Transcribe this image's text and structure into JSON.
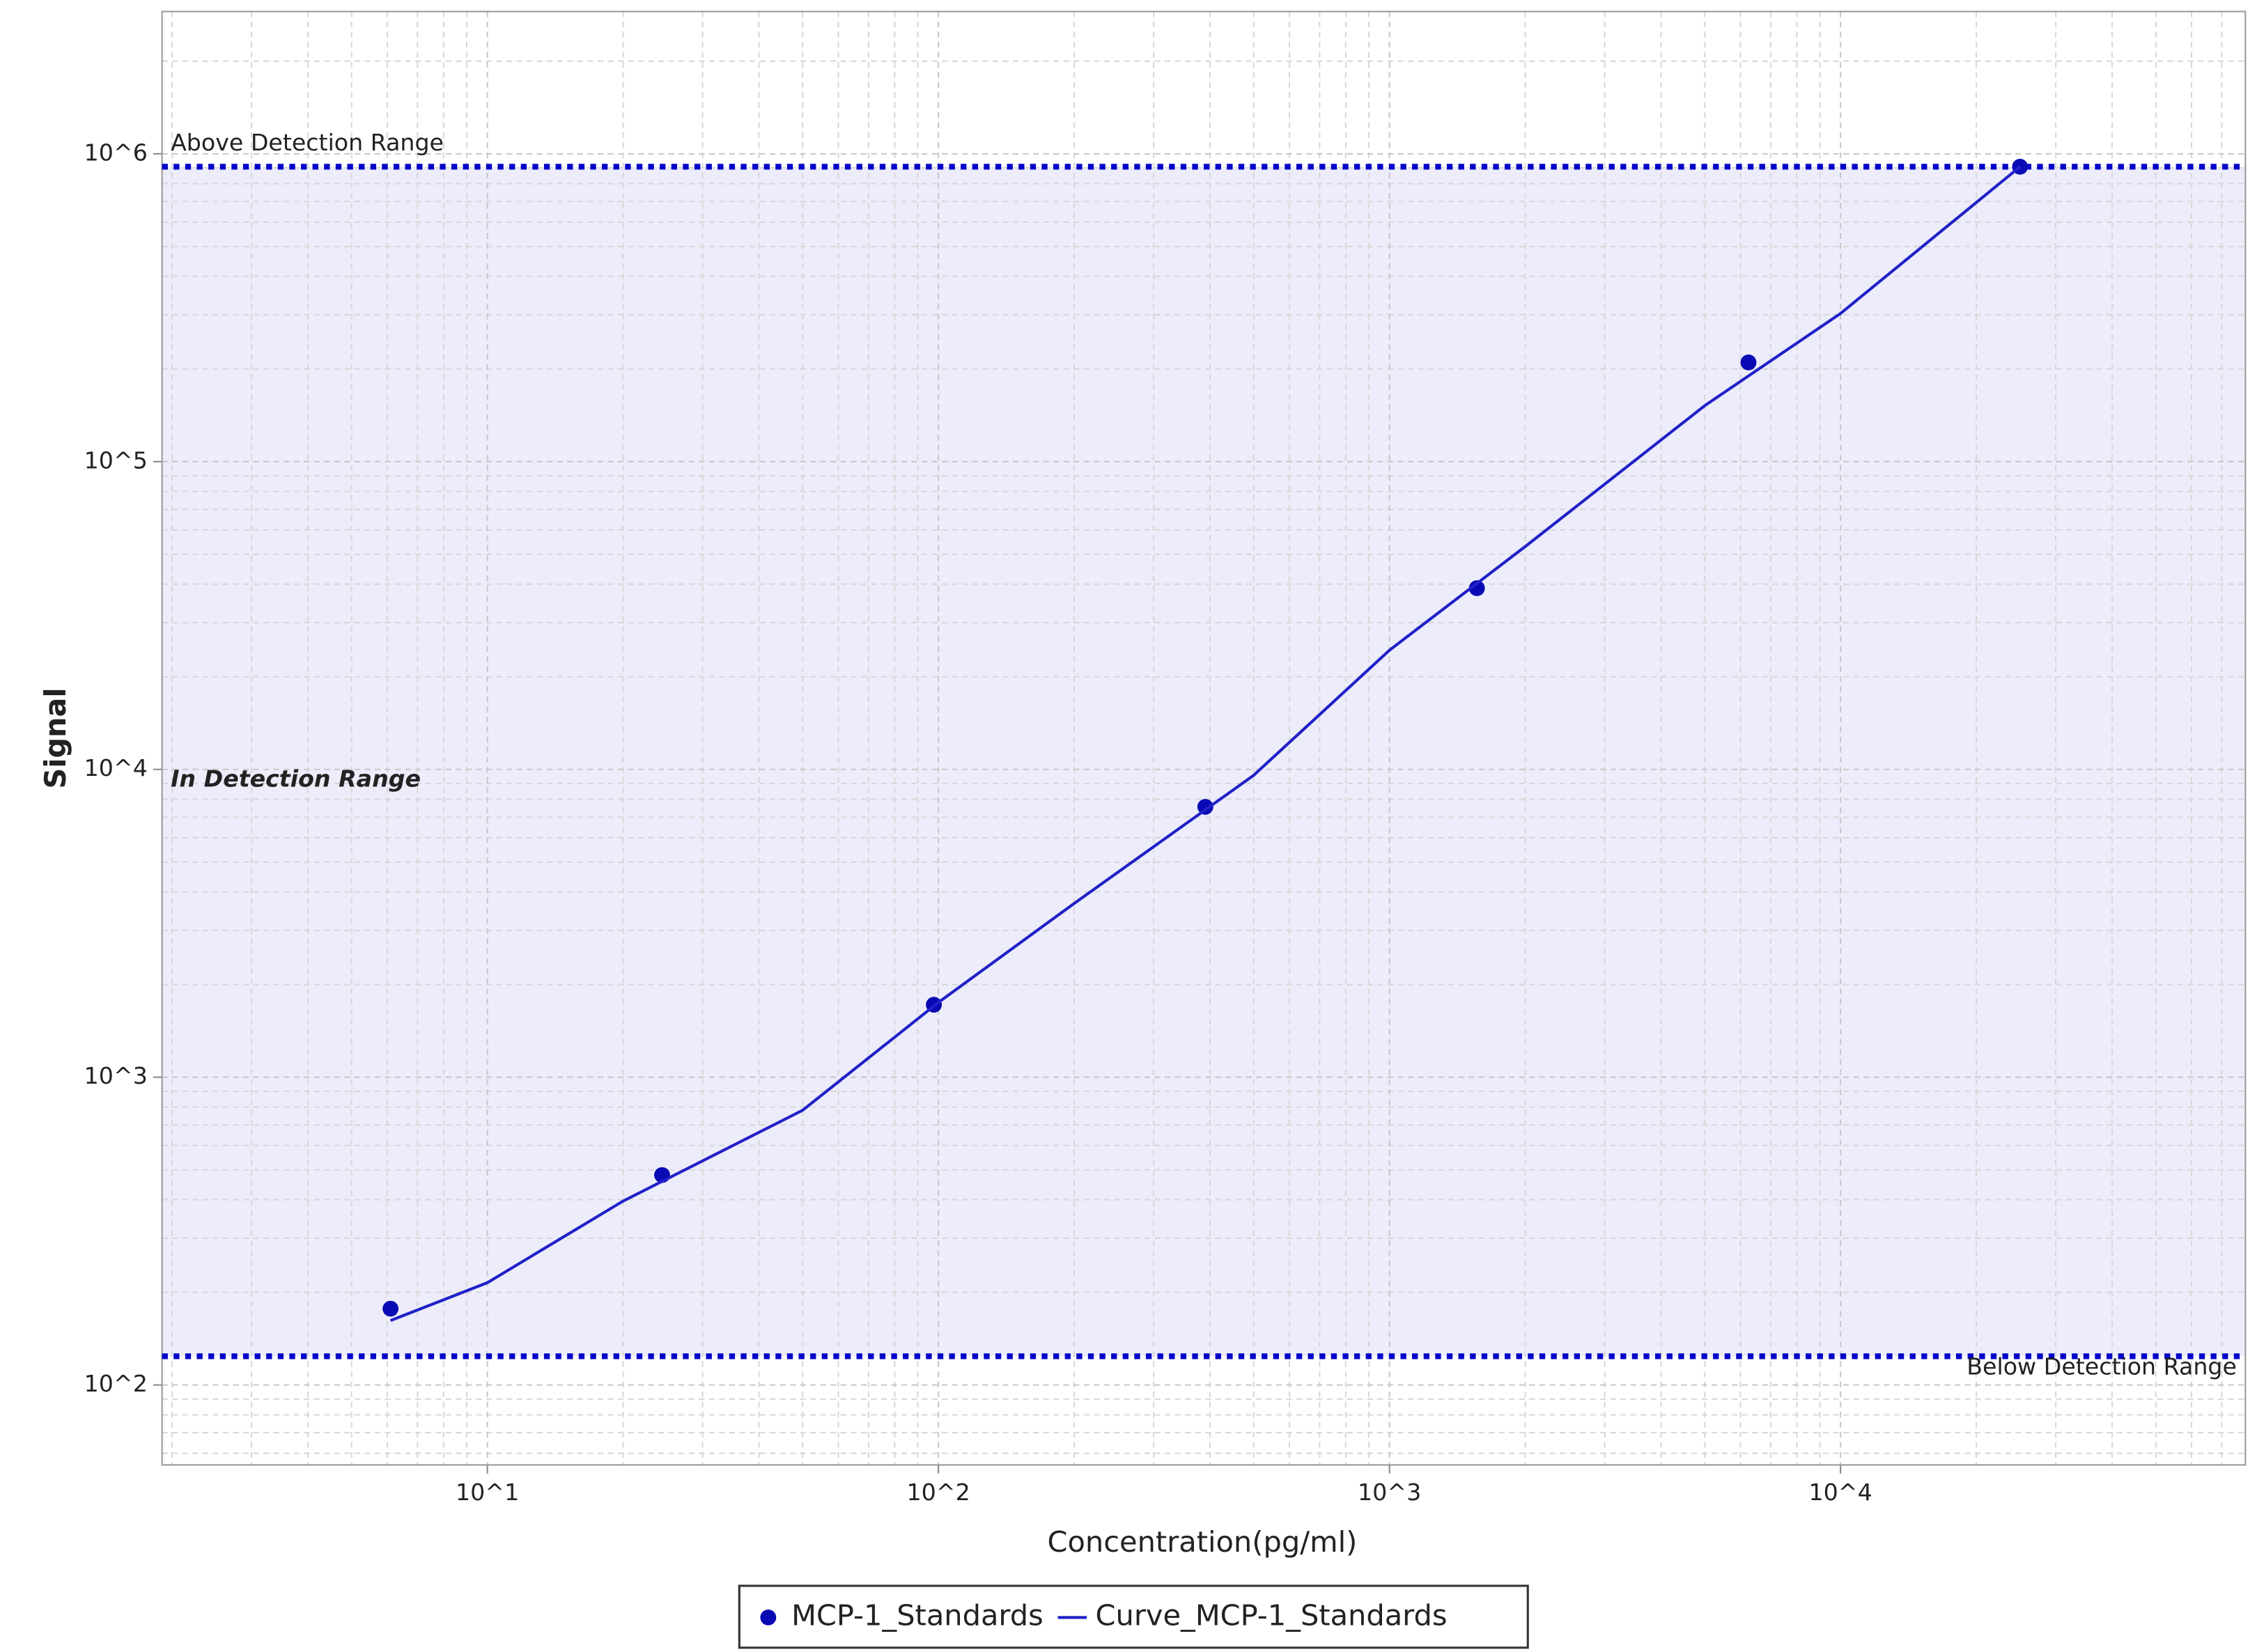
{
  "chart_data": {
    "type": "scatter",
    "x_label": "Concentration(pg/ml)",
    "y_label": "Signal",
    "log_x": true,
    "log_y": true,
    "grid": true,
    "xlim": [
      1.9,
      79000
    ],
    "ylim": [
      55,
      2900000
    ],
    "xticks": [
      {
        "value": 10,
        "label": "10^1"
      },
      {
        "value": 100,
        "label": "10^2"
      },
      {
        "value": 1000,
        "label": "10^3"
      },
      {
        "value": 10000,
        "label": "10^4"
      }
    ],
    "yticks": [
      {
        "value": 100,
        "label": "10^2"
      },
      {
        "value": 1000,
        "label": "10^3"
      },
      {
        "value": 10000,
        "label": "10^4"
      },
      {
        "value": 100000,
        "label": "10^5"
      },
      {
        "value": 1000000,
        "label": "10^6"
      }
    ],
    "detection_range": {
      "upper": 908000,
      "upper_label": "Above Detection Range",
      "lower": 124,
      "lower_label": "Below Detection Range",
      "in_label": "In Detection Range",
      "color": "#0000c8",
      "fill": "#ececfb"
    },
    "series": [
      {
        "name": "MCP-1_Standards",
        "type": "scatter",
        "color": "#0a0ab4",
        "x": [
          6.1,
          24.4,
          97.7,
          390.6,
          1562.5,
          6250,
          25000
        ],
        "values": [
          177,
          481,
          1720,
          7560,
          38800,
          210000,
          908000
        ]
      },
      {
        "name": "Curve_MCP-1_Standards",
        "type": "line",
        "color": "#2020c8",
        "x": [
          6.1,
          10,
          20,
          50,
          100,
          200,
          500,
          1000,
          2000,
          5000,
          10000,
          25000
        ],
        "values": [
          162,
          215,
          396,
          781,
          1750,
          3670,
          9570,
          24400,
          53000,
          152000,
          303000,
          908000
        ]
      }
    ]
  }
}
